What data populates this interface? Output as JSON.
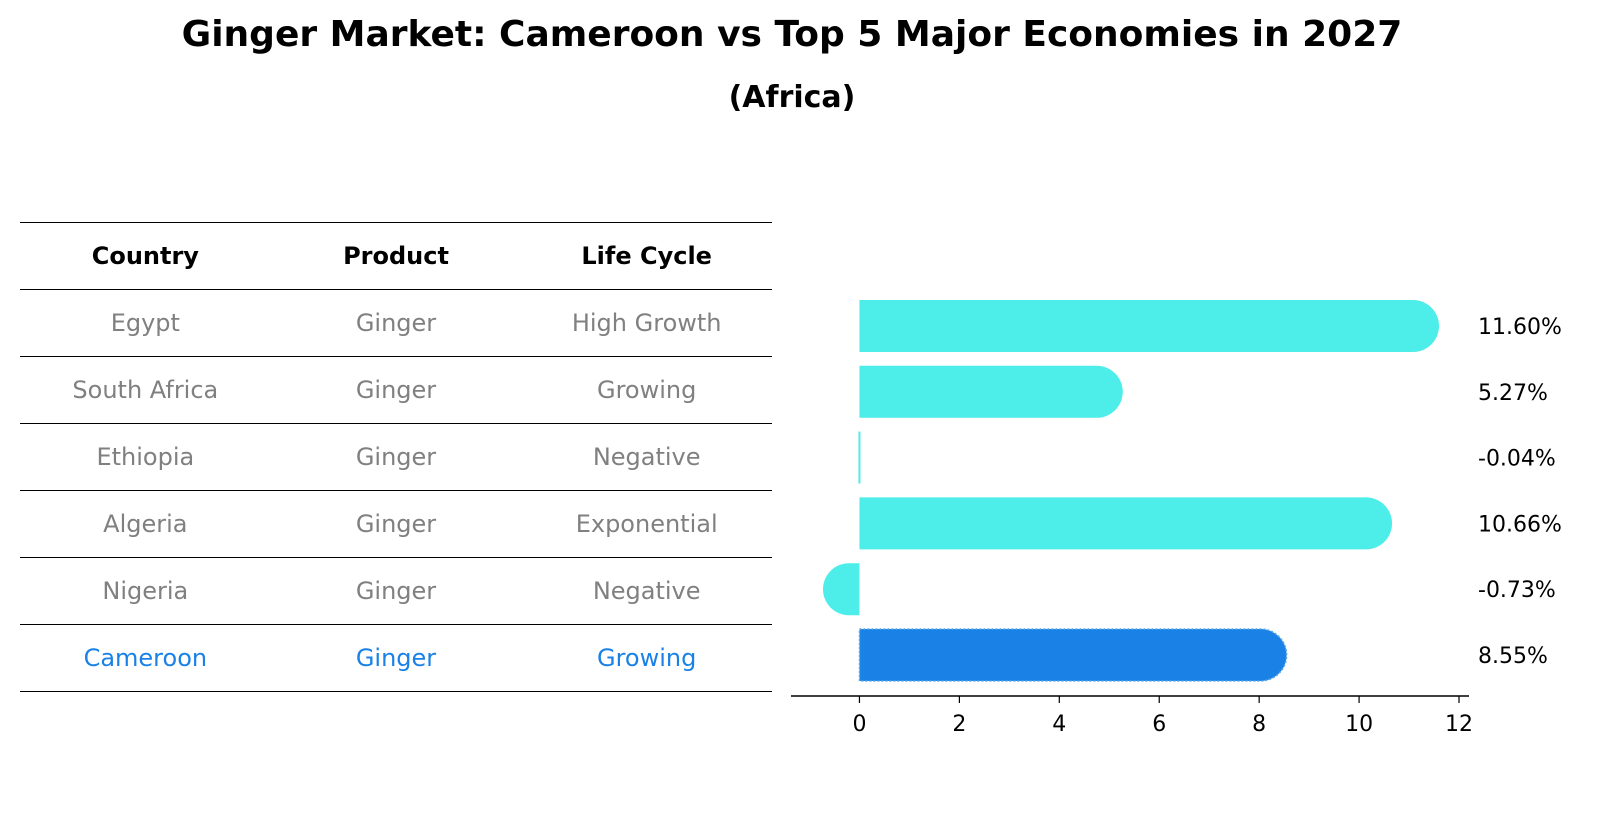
{
  "title": "Ginger Market: Cameroon vs Top 5 Major Economies in 2027",
  "subtitle": "(Africa)",
  "table": {
    "headers": [
      "Country",
      "Product",
      "Life Cycle"
    ],
    "rows": [
      [
        "Egypt",
        "Ginger",
        "High Growth"
      ],
      [
        "South Africa",
        "Ginger",
        "Growing"
      ],
      [
        "Ethiopia",
        "Ginger",
        "Negative"
      ],
      [
        "Algeria",
        "Ginger",
        "Exponential"
      ],
      [
        "Nigeria",
        "Ginger",
        "Negative"
      ],
      [
        "Cameroon",
        "Ginger",
        "Growing"
      ]
    ]
  },
  "colors": {
    "bar": "#4deeea",
    "highlight_bar": "#1a82e6",
    "text_muted": "#808080",
    "highlight_text": "#1a82e6"
  },
  "chart_data": {
    "type": "bar",
    "orientation": "horizontal",
    "categories": [
      "Egypt",
      "South Africa",
      "Ethiopia",
      "Algeria",
      "Nigeria",
      "Cameroon"
    ],
    "values": [
      11.6,
      5.27,
      -0.04,
      10.66,
      -0.73,
      8.55
    ],
    "value_labels": [
      "11.60%",
      "5.27%",
      "-0.04%",
      "10.66%",
      "-0.73%",
      "8.55%"
    ],
    "highlight": "Cameroon",
    "xticks": [
      0,
      2,
      4,
      6,
      8,
      10,
      12
    ],
    "xlim": [
      -1.37,
      12.2
    ],
    "grid": false
  }
}
